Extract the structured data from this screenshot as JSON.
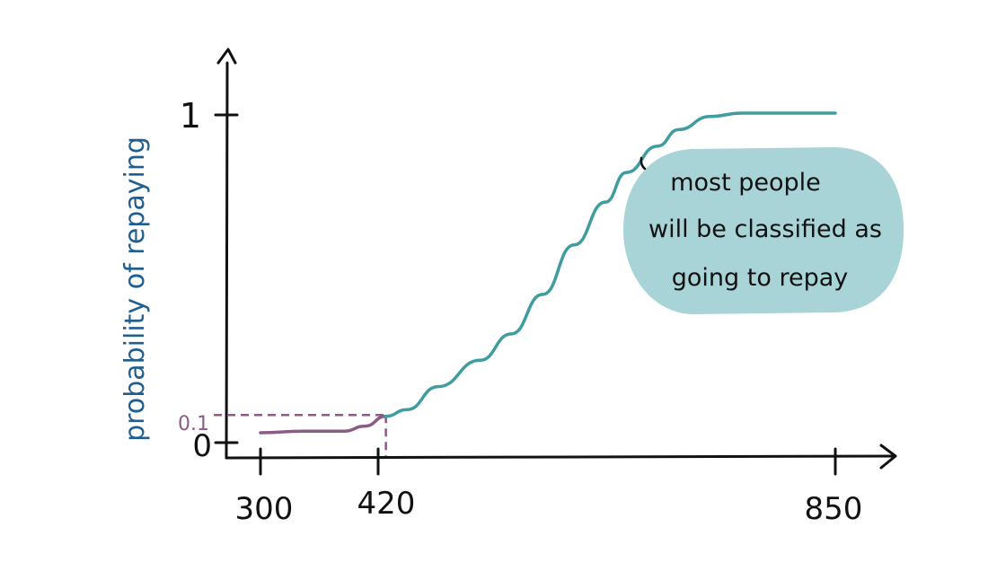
{
  "chart_data": {
    "type": "line",
    "title": "",
    "xlabel": "",
    "ylabel": "probability of repaying",
    "x_ticks": [
      "300",
      "420",
      "850"
    ],
    "y_ticks": [
      "0",
      "1"
    ],
    "threshold": {
      "x": 420,
      "y": 0.1,
      "label": "0.1"
    },
    "annotation": {
      "lines": [
        "most people",
        "will be classified as",
        "going to repay"
      ]
    },
    "series": [
      {
        "color": "#8e5a86",
        "x": [
          300,
          340,
          380,
          400,
          420
        ],
        "y": [
          0.03,
          0.035,
          0.035,
          0.05,
          0.08
        ]
      },
      {
        "color": "#3f9c9f",
        "x": [
          420,
          440,
          470,
          510,
          540,
          570,
          600,
          630,
          650,
          680,
          700,
          730,
          760,
          790,
          820,
          850
        ],
        "y": [
          0.08,
          0.1,
          0.17,
          0.25,
          0.33,
          0.45,
          0.6,
          0.73,
          0.82,
          0.9,
          0.95,
          0.99,
          1.0,
          1.0,
          1.0,
          1.0
        ]
      }
    ],
    "colors": {
      "axis": "#111111",
      "ylabel": "#1f5e8e",
      "threshold": "#8e5a86",
      "bubble": "#a8d4d7"
    }
  }
}
